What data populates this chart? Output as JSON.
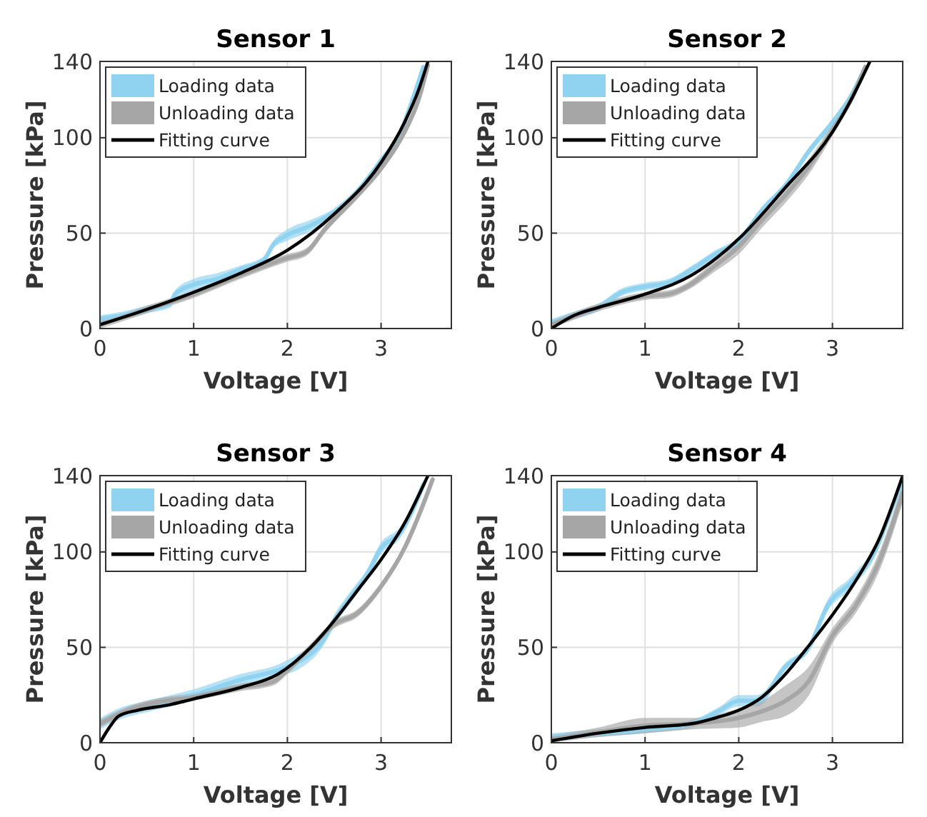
{
  "chart_data": [
    {
      "type": "line",
      "title": "Sensor 1",
      "xlabel": "Voltage [V]",
      "ylabel": "Pressure [kPa]",
      "xlim": [
        0,
        3.75
      ],
      "ylim": [
        0,
        140
      ],
      "xticks": [
        0,
        1,
        2,
        3
      ],
      "yticks": [
        0,
        50,
        100,
        140
      ],
      "grid": true,
      "legend": "top left",
      "series": [
        {
          "name": "Loading data",
          "color": "#8fd3f0",
          "x": [
            0,
            0.25,
            0.5,
            0.75,
            0.8,
            1,
            1.25,
            1.5,
            1.75,
            1.85,
            2,
            2.25,
            2.5,
            2.75,
            3,
            3.2,
            3.35,
            3.45
          ],
          "values": [
            5,
            7,
            10,
            13,
            18,
            23,
            26,
            31,
            36,
            44,
            49,
            54,
            61,
            72,
            88,
            102,
            122,
            137
          ],
          "lower": [
            3,
            5,
            8,
            11,
            15,
            20,
            24,
            29,
            34,
            42,
            46,
            51,
            59,
            70,
            86,
            100,
            120,
            135
          ],
          "upper": [
            7,
            9,
            12,
            15,
            20,
            26,
            29,
            33,
            38,
            46,
            52,
            57,
            63,
            74,
            90,
            104,
            124,
            139
          ]
        },
        {
          "name": "Unloading data",
          "color": "#a6a6a6",
          "x": [
            0,
            0.5,
            1,
            1.5,
            2,
            2.2,
            2.4,
            2.75,
            3,
            3.25,
            3.4,
            3.5
          ],
          "values": [
            2,
            10,
            18,
            28,
            37,
            40,
            52,
            70,
            84,
            103,
            120,
            138
          ],
          "lower": [
            0,
            8,
            16,
            26,
            35,
            38,
            50,
            68,
            82,
            101,
            118,
            136
          ],
          "upper": [
            4,
            12,
            20,
            30,
            39,
            42,
            54,
            72,
            86,
            105,
            122,
            140
          ]
        },
        {
          "name": "Fitting curve",
          "color": "#000000",
          "x": [
            0,
            0.5,
            1,
            1.5,
            2,
            2.5,
            3,
            3.25,
            3.4,
            3.5
          ],
          "values": [
            2,
            10,
            19,
            29,
            41,
            60,
            87,
            108,
            125,
            140
          ]
        }
      ]
    },
    {
      "type": "line",
      "title": "Sensor 2",
      "xlabel": "Voltage [V]",
      "ylabel": "Pressure [kPa]",
      "xlim": [
        0,
        3.75
      ],
      "ylim": [
        0,
        140
      ],
      "xticks": [
        0,
        1,
        2,
        3
      ],
      "yticks": [
        0,
        50,
        100,
        140
      ],
      "grid": true,
      "legend": "top left",
      "series": [
        {
          "name": "Loading data",
          "color": "#8fd3f0",
          "x": [
            0,
            0.25,
            0.5,
            0.75,
            1,
            1.25,
            1.5,
            1.75,
            2,
            2.25,
            2.5,
            2.75,
            3,
            3.2,
            3.35
          ],
          "values": [
            3,
            7,
            11,
            19,
            22,
            24,
            31,
            39,
            46,
            62,
            75,
            93,
            108,
            122,
            137
          ],
          "lower": [
            1,
            5,
            9,
            17,
            20,
            22,
            29,
            37,
            44,
            60,
            73,
            91,
            106,
            120,
            135
          ],
          "upper": [
            5,
            9,
            13,
            21,
            24,
            26,
            33,
            41,
            48,
            64,
            77,
            95,
            110,
            124,
            139
          ]
        },
        {
          "name": "Unloading data",
          "color": "#a6a6a6",
          "x": [
            0,
            0.5,
            1,
            1.25,
            1.45,
            1.75,
            2,
            2.25,
            2.5,
            2.75,
            3,
            3.2,
            3.35
          ],
          "values": [
            2,
            11,
            17,
            18,
            22,
            33,
            43,
            57,
            70,
            85,
            104,
            120,
            137
          ],
          "lower": [
            0,
            9,
            15,
            16,
            20,
            30,
            39,
            53,
            66,
            81,
            101,
            118,
            135
          ],
          "upper": [
            4,
            13,
            19,
            20,
            24,
            36,
            47,
            61,
            74,
            89,
            107,
            122,
            139
          ]
        },
        {
          "name": "Fitting curve",
          "color": "#000000",
          "x": [
            0,
            0.25,
            0.5,
            1,
            1.5,
            2,
            2.5,
            3,
            3.2,
            3.4
          ],
          "values": [
            0,
            7,
            11,
            18,
            28,
            47,
            74,
            103,
            120,
            140
          ]
        }
      ]
    },
    {
      "type": "line",
      "title": "Sensor 3",
      "xlabel": "Voltage [V]",
      "ylabel": "Pressure [kPa]",
      "xlim": [
        0,
        3.75
      ],
      "ylim": [
        0,
        140
      ],
      "xticks": [
        0,
        1,
        2,
        3
      ],
      "yticks": [
        0,
        50,
        100,
        140
      ],
      "grid": true,
      "legend": "top left",
      "series": [
        {
          "name": "Loading data",
          "color": "#8fd3f0",
          "x": [
            0,
            0.2,
            0.5,
            1,
            1.5,
            1.9,
            2.1,
            2.4,
            2.5,
            2.7,
            2.85,
            3,
            3.2,
            3.45
          ],
          "values": [
            10,
            15,
            19,
            25,
            33,
            38,
            42,
            55,
            64,
            78,
            88,
            102,
            110,
            135
          ],
          "lower": [
            7,
            12,
            16,
            22,
            30,
            35,
            38,
            52,
            61,
            75,
            85,
            99,
            107,
            132
          ],
          "upper": [
            13,
            18,
            22,
            28,
            36,
            41,
            46,
            58,
            67,
            81,
            91,
            105,
            113,
            138
          ]
        },
        {
          "name": "Unloading data",
          "color": "#a6a6a6",
          "x": [
            0,
            0.25,
            0.5,
            1,
            1.5,
            1.85,
            2,
            2.25,
            2.5,
            2.75,
            3,
            3.25,
            3.45,
            3.55
          ],
          "values": [
            10,
            16,
            20,
            24,
            29,
            32,
            38,
            50,
            62,
            68,
            82,
            102,
            125,
            138
          ],
          "lower": [
            8,
            14,
            18,
            22,
            27,
            30,
            36,
            48,
            60,
            66,
            80,
            100,
            123,
            136
          ],
          "upper": [
            12,
            18,
            22,
            26,
            31,
            34,
            40,
            52,
            64,
            70,
            84,
            104,
            127,
            140
          ]
        },
        {
          "name": "Fitting curve",
          "color": "#000000",
          "x": [
            0,
            0.1,
            0.2,
            0.4,
            0.75,
            1,
            1.5,
            1.9,
            2.25,
            2.5,
            2.75,
            3,
            3.25,
            3.5
          ],
          "values": [
            0,
            8,
            14,
            17,
            20,
            23,
            29,
            36,
            50,
            64,
            80,
            96,
            115,
            140
          ]
        }
      ]
    },
    {
      "type": "line",
      "title": "Sensor 4",
      "xlabel": "Voltage [V]",
      "ylabel": "Pressure [kPa]",
      "xlim": [
        0,
        3.75
      ],
      "ylim": [
        0,
        140
      ],
      "xticks": [
        0,
        1,
        2,
        3
      ],
      "yticks": [
        0,
        50,
        100,
        140
      ],
      "grid": true,
      "legend": "top left",
      "series": [
        {
          "name": "Loading data",
          "color": "#8fd3f0",
          "x": [
            0,
            0.5,
            1,
            1.5,
            1.8,
            2,
            2.2,
            2.5,
            2.75,
            2.95,
            3.2,
            3.45,
            3.65,
            3.75
          ],
          "values": [
            3,
            5,
            7,
            10,
            17,
            22,
            22,
            40,
            50,
            72,
            84,
            100,
            125,
            138
          ],
          "lower": [
            1,
            3,
            5,
            8,
            15,
            19,
            19,
            38,
            48,
            69,
            81,
            97,
            123,
            136
          ],
          "upper": [
            5,
            7,
            9,
            12,
            19,
            25,
            25,
            42,
            52,
            75,
            87,
            103,
            127,
            140
          ]
        },
        {
          "name": "Unloading data",
          "color": "#a6a6a6",
          "x": [
            0,
            0.5,
            1,
            1.5,
            2,
            2.25,
            2.5,
            2.75,
            3,
            3.25,
            3.5,
            3.75
          ],
          "values": [
            2,
            5.5,
            9,
            10,
            13,
            16.5,
            22,
            32.5,
            56,
            72,
            95,
            131
          ],
          "lower": [
            0,
            3,
            5,
            7,
            8,
            11,
            14,
            25,
            52,
            68,
            90,
            126
          ],
          "upper": [
            4,
            8,
            13,
            13,
            18,
            22,
            30,
            40,
            60,
            76,
            100,
            136
          ]
        },
        {
          "name": "Fitting curve",
          "color": "#000000",
          "x": [
            0,
            0.5,
            1,
            1.5,
            1.75,
            2,
            2.25,
            2.5,
            2.75,
            3,
            3.25,
            3.5,
            3.75
          ],
          "values": [
            1,
            5,
            8,
            10,
            13,
            17,
            24,
            36,
            51,
            67,
            85,
            107,
            140
          ]
        }
      ]
    }
  ]
}
